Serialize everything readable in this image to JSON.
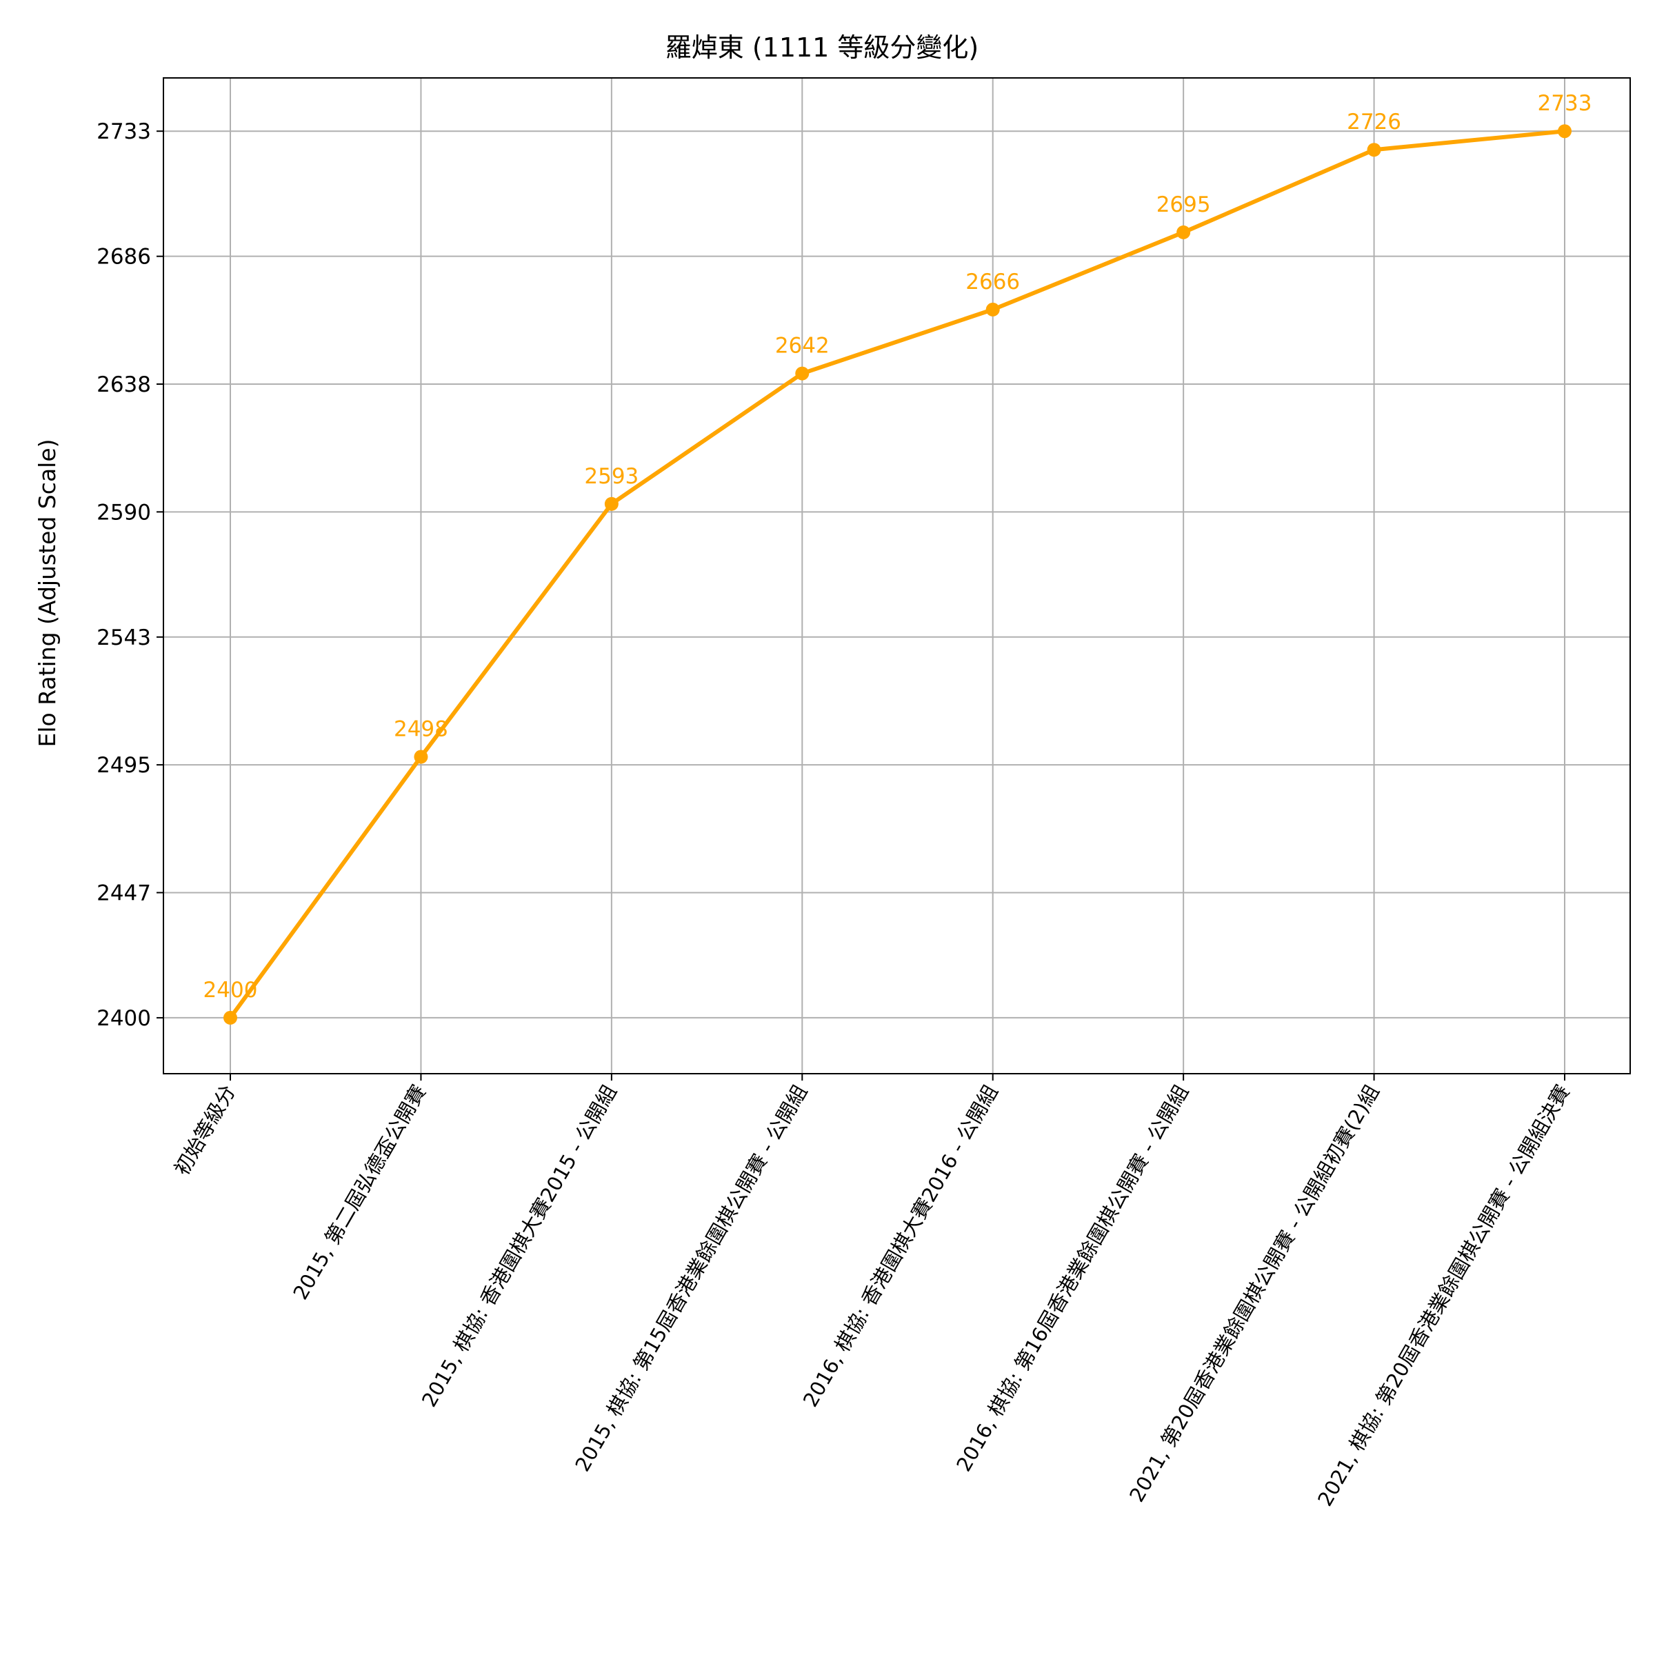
{
  "chart_data": {
    "type": "line",
    "title": "羅焯東 (1111 等級分變化)",
    "xlabel": "",
    "ylabel": "Elo Rating (Adjusted Scale)",
    "categories": [
      "初始等級分",
      "2015, 第二屆弘德盃公開賽",
      "2015, 棋協: 香港圍棋大賽2015 - 公開組",
      "2015, 棋協: 第15屆香港業餘圍棋公開賽 - 公開組",
      "2016, 棋協: 香港圍棋大賽2016 - 公開組",
      "2016, 棋協: 第16屆香港業餘圍棋公開賽 - 公開組",
      "2021, 第20屆香港業餘圍棋公開賽 - 公開組初賽(2)組",
      "2021, 棋協: 第20屆香港業餘圍棋公開賽 - 公開組決賽"
    ],
    "series": [
      {
        "values": [
          2400,
          2498,
          2593,
          2642,
          2666,
          2695,
          2726,
          2733
        ],
        "labels": [
          "2400",
          "2498",
          "2593",
          "2642",
          "2666",
          "2695",
          "2726",
          "2733"
        ],
        "color": "#ffa500"
      }
    ],
    "yticks": [
      2400,
      2447,
      2495,
      2543,
      2590,
      2638,
      2686,
      2733
    ],
    "ytick_labels": [
      "2400",
      "2447",
      "2495",
      "2543",
      "2590",
      "2638",
      "2686",
      "2733"
    ],
    "ylim": [
      2379,
      2753
    ],
    "grid": true,
    "legend": "none"
  }
}
